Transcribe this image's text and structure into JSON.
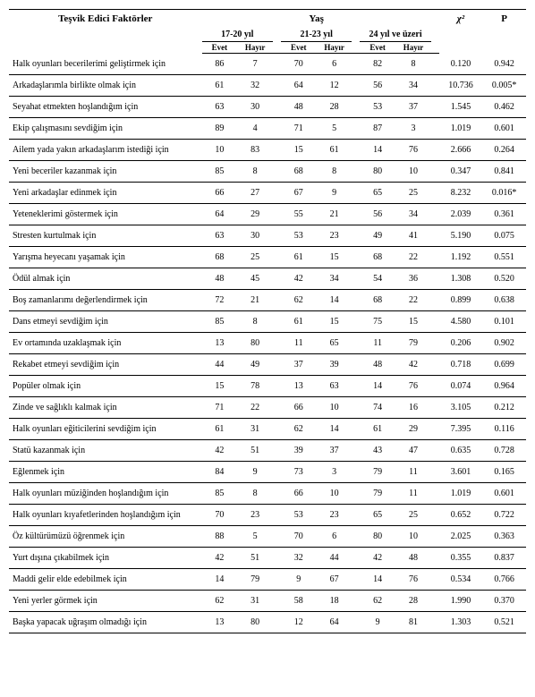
{
  "headers": {
    "factors": "Teşvik Edici Faktörler",
    "age": "Yaş",
    "chi2": "χ²",
    "p": "P",
    "age_groups": [
      "17-20 yıl",
      "21-23 yıl",
      "24 yıl ve üzeri"
    ],
    "yes": "Evet",
    "no": "Hayır"
  },
  "rows": [
    {
      "label": "Halk oyunları becerilerimi geliştirmek için",
      "v": [
        86,
        7,
        70,
        6,
        82,
        8
      ],
      "chi": "0.120",
      "p": "0.942"
    },
    {
      "label": "Arkadaşlarımla birlikte olmak için",
      "v": [
        61,
        32,
        64,
        12,
        56,
        34
      ],
      "chi": "10.736",
      "p": "0.005*"
    },
    {
      "label": "Seyahat etmekten hoşlandığım için",
      "v": [
        63,
        30,
        48,
        28,
        53,
        37
      ],
      "chi": "1.545",
      "p": "0.462"
    },
    {
      "label": "Ekip çalışmasını sevdiğim için",
      "v": [
        89,
        4,
        71,
        5,
        87,
        3
      ],
      "chi": "1.019",
      "p": "0.601"
    },
    {
      "label": "Ailem yada yakın arkadaşlarım istediği için",
      "v": [
        10,
        83,
        15,
        61,
        14,
        76
      ],
      "chi": "2.666",
      "p": "0.264"
    },
    {
      "label": "Yeni beceriler kazanmak için",
      "v": [
        85,
        8,
        68,
        8,
        80,
        10
      ],
      "chi": "0.347",
      "p": "0.841"
    },
    {
      "label": "Yeni arkadaşlar edinmek için",
      "v": [
        66,
        27,
        67,
        9,
        65,
        25
      ],
      "chi": "8.232",
      "p": "0.016*"
    },
    {
      "label": "Yeteneklerimi göstermek için",
      "v": [
        64,
        29,
        55,
        21,
        56,
        34
      ],
      "chi": "2.039",
      "p": "0.361"
    },
    {
      "label": "Stresten kurtulmak için",
      "v": [
        63,
        30,
        53,
        23,
        49,
        41
      ],
      "chi": "5.190",
      "p": "0.075"
    },
    {
      "label": "Yarışma heyecanı yaşamak için",
      "v": [
        68,
        25,
        61,
        15,
        68,
        22
      ],
      "chi": "1.192",
      "p": "0.551"
    },
    {
      "label": "Ödül almak için",
      "v": [
        48,
        45,
        42,
        34,
        54,
        36
      ],
      "chi": "1.308",
      "p": "0.520"
    },
    {
      "label": "Boş zamanlarımı değerlendirmek için",
      "v": [
        72,
        21,
        62,
        14,
        68,
        22
      ],
      "chi": "0.899",
      "p": "0.638"
    },
    {
      "label": "Dans etmeyi sevdiğim için",
      "v": [
        85,
        8,
        61,
        15,
        75,
        15
      ],
      "chi": "4.580",
      "p": "0.101"
    },
    {
      "label": "Ev ortamında uzaklaşmak için",
      "v": [
        13,
        80,
        11,
        65,
        11,
        79
      ],
      "chi": "0.206",
      "p": "0.902"
    },
    {
      "label": "Rekabet etmeyi sevdiğim için",
      "v": [
        44,
        49,
        37,
        39,
        48,
        42
      ],
      "chi": "0.718",
      "p": "0.699"
    },
    {
      "label": "Popüler olmak için",
      "v": [
        15,
        78,
        13,
        63,
        14,
        76
      ],
      "chi": "0.074",
      "p": "0.964"
    },
    {
      "label": "Zinde ve sağlıklı kalmak için",
      "v": [
        71,
        22,
        66,
        10,
        74,
        16
      ],
      "chi": "3.105",
      "p": "0.212"
    },
    {
      "label": "Halk oyunları eğiticilerini sevdiğim için",
      "v": [
        61,
        31,
        62,
        14,
        61,
        29
      ],
      "chi": "7.395",
      "p": "0.116"
    },
    {
      "label": "Statü kazanmak için",
      "v": [
        42,
        51,
        39,
        37,
        43,
        47
      ],
      "chi": "0.635",
      "p": "0.728"
    },
    {
      "label": "Eğlenmek için",
      "v": [
        84,
        9,
        73,
        3,
        79,
        11
      ],
      "chi": "3.601",
      "p": "0.165"
    },
    {
      "label": "Halk oyunları müziğinden hoşlandığım için",
      "v": [
        85,
        8,
        66,
        10,
        79,
        11
      ],
      "chi": "1.019",
      "p": "0.601"
    },
    {
      "label": "Halk oyunları kıyafetlerinden hoşlandığım için",
      "v": [
        70,
        23,
        53,
        23,
        65,
        25
      ],
      "chi": "0.652",
      "p": "0.722"
    },
    {
      "label": "Öz kültürümüzü öğrenmek için",
      "v": [
        88,
        5,
        70,
        6,
        80,
        10
      ],
      "chi": "2.025",
      "p": "0.363"
    },
    {
      "label": "Yurt dışına çıkabilmek için",
      "v": [
        42,
        51,
        32,
        44,
        42,
        48
      ],
      "chi": "0.355",
      "p": "0.837"
    },
    {
      "label": "Maddi gelir elde edebilmek için",
      "v": [
        14,
        79,
        9,
        67,
        14,
        76
      ],
      "chi": "0.534",
      "p": "0.766"
    },
    {
      "label": "Yeni yerler görmek için",
      "v": [
        62,
        31,
        58,
        18,
        62,
        28
      ],
      "chi": "1.990",
      "p": "0.370"
    },
    {
      "label": "Başka yapacak uğraşım olmadığı için",
      "v": [
        13,
        80,
        12,
        64,
        9,
        81
      ],
      "chi": "1.303",
      "p": "0.521"
    }
  ]
}
